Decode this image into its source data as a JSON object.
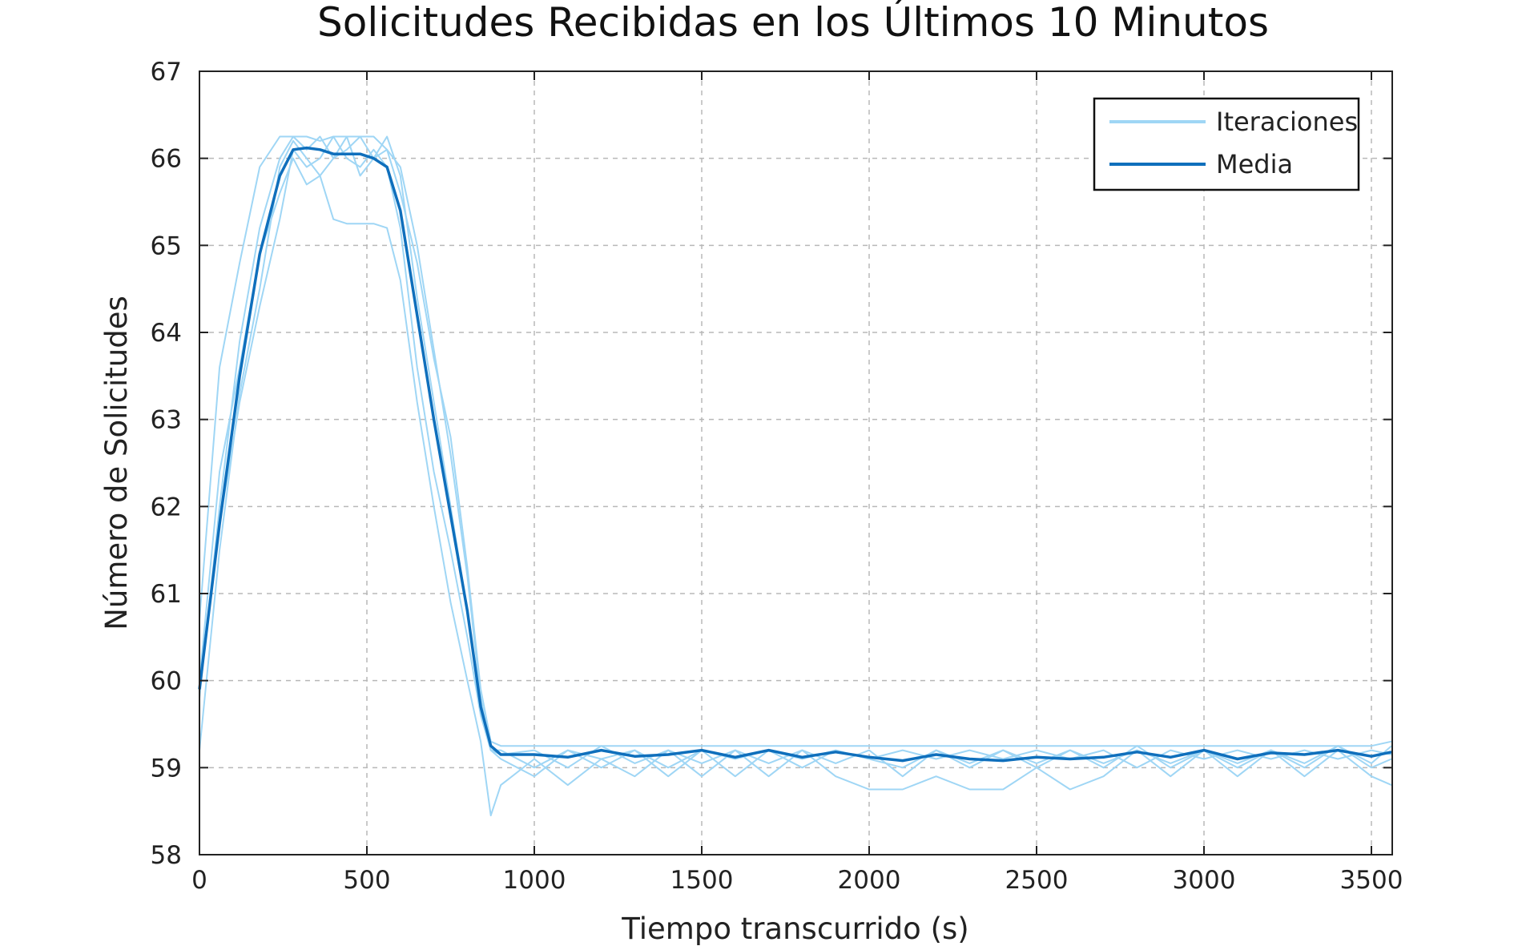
{
  "chart_data": {
    "type": "line",
    "title": "Solicitudes Recibidas en los Últimos 10 Minutos",
    "xlabel": "Tiempo transcurrido (s)",
    "ylabel": "Número de Solicitudes",
    "xlim": [
      0,
      3600
    ],
    "ylim": [
      58,
      67
    ],
    "xticks": [
      0,
      500,
      1000,
      1500,
      2000,
      2500,
      3000,
      3500
    ],
    "yticks": [
      58,
      59,
      60,
      61,
      62,
      63,
      64,
      65,
      66,
      67
    ],
    "grid": true,
    "legend": {
      "position": "top-right",
      "entries": [
        "Iteraciones",
        "Media"
      ]
    },
    "colors": {
      "iterations": "#9fd6f5",
      "mean": "#0f6fbc",
      "grid": "#b8b8b8",
      "axis": "#222222"
    },
    "series": [
      {
        "name": "Iteraciones",
        "x": [
          0,
          60,
          120,
          180,
          240,
          280,
          320,
          360,
          400,
          440,
          480,
          520,
          560,
          600,
          650,
          700,
          750,
          800,
          840,
          870,
          900,
          1000,
          1100,
          1200,
          1300,
          1400,
          1500,
          1600,
          1700,
          1800,
          1900,
          2000,
          2100,
          2200,
          2300,
          2400,
          2500,
          2600,
          2700,
          2800,
          2900,
          3000,
          3100,
          3200,
          3300,
          3400,
          3500,
          3560
        ],
        "values": [
          60.7,
          63.6,
          64.8,
          65.9,
          66.25,
          66.25,
          66.25,
          66.2,
          66.25,
          66.25,
          66.25,
          66.25,
          66.1,
          65.6,
          64.8,
          63.7,
          62.8,
          61.3,
          59.9,
          59.3,
          59.25,
          59.25,
          59.25,
          59.25,
          59.25,
          59.25,
          59.25,
          59.25,
          59.25,
          59.25,
          59.25,
          59.25,
          59.25,
          59.25,
          59.25,
          59.25,
          59.25,
          59.25,
          59.25,
          59.25,
          59.25,
          59.25,
          59.25,
          59.25,
          59.25,
          59.25,
          59.25,
          59.3
        ]
      },
      {
        "name": "",
        "x": [
          0,
          60,
          120,
          180,
          240,
          280,
          320,
          360,
          400,
          440,
          480,
          520,
          560,
          600,
          650,
          700,
          750,
          800,
          840,
          870,
          900,
          1000,
          1100,
          1200,
          1300,
          1400,
          1500,
          1600,
          1700,
          1800,
          1900,
          2000,
          2100,
          2200,
          2300,
          2400,
          2500,
          2600,
          2700,
          2800,
          2900,
          3000,
          3100,
          3200,
          3300,
          3400,
          3500,
          3560
        ],
        "values": [
          59.2,
          61.5,
          63.3,
          64.5,
          65.9,
          66.2,
          66.0,
          65.8,
          65.3,
          65.25,
          65.25,
          65.25,
          65.2,
          64.6,
          63.2,
          62.0,
          60.9,
          60.0,
          59.3,
          58.45,
          58.8,
          59.1,
          58.8,
          59.1,
          58.9,
          59.2,
          58.9,
          59.2,
          58.9,
          59.2,
          58.9,
          58.75,
          58.75,
          58.9,
          58.75,
          58.75,
          59.0,
          58.75,
          58.9,
          59.2,
          58.9,
          59.2,
          58.9,
          59.2,
          58.9,
          59.2,
          58.9,
          58.8
        ]
      },
      {
        "name": "",
        "x": [
          0,
          60,
          120,
          180,
          240,
          280,
          320,
          360,
          400,
          440,
          480,
          520,
          560,
          600,
          650,
          700,
          750,
          800,
          840,
          870,
          900,
          1000,
          1100,
          1200,
          1300,
          1400,
          1500,
          1600,
          1700,
          1800,
          1900,
          2000,
          2100,
          2200,
          2300,
          2400,
          2500,
          2600,
          2700,
          2800,
          2900,
          3000,
          3100,
          3200,
          3300,
          3400,
          3500,
          3560
        ],
        "values": [
          59.8,
          62.0,
          63.9,
          65.2,
          66.0,
          66.25,
          66.1,
          66.25,
          66.0,
          66.1,
          66.25,
          66.0,
          66.1,
          65.9,
          65.0,
          63.8,
          62.6,
          61.2,
          59.8,
          59.2,
          59.1,
          58.9,
          59.2,
          59.0,
          59.2,
          58.9,
          59.2,
          58.9,
          59.2,
          59.0,
          59.2,
          59.1,
          59.0,
          59.2,
          59.0,
          59.2,
          59.0,
          59.2,
          59.0,
          59.25,
          59.0,
          59.2,
          59.0,
          59.2,
          59.0,
          59.25,
          59.0,
          59.1
        ]
      },
      {
        "name": "",
        "x": [
          0,
          60,
          120,
          180,
          240,
          280,
          320,
          360,
          400,
          440,
          480,
          520,
          560,
          600,
          650,
          700,
          750,
          800,
          840,
          870,
          900,
          1000,
          1100,
          1200,
          1300,
          1400,
          1500,
          1600,
          1700,
          1800,
          1900,
          2000,
          2100,
          2200,
          2300,
          2400,
          2500,
          2600,
          2700,
          2800,
          2900,
          3000,
          3100,
          3200,
          3300,
          3400,
          3500,
          3560
        ],
        "values": [
          59.9,
          61.8,
          63.2,
          64.3,
          65.3,
          66.1,
          65.9,
          66.0,
          66.25,
          66.0,
          65.9,
          66.1,
          65.9,
          65.2,
          63.6,
          62.4,
          61.5,
          60.5,
          59.6,
          59.2,
          59.15,
          59.2,
          59.0,
          59.25,
          59.05,
          59.2,
          59.05,
          59.2,
          59.05,
          59.2,
          59.05,
          59.2,
          58.9,
          59.2,
          59.05,
          59.2,
          59.05,
          59.2,
          59.05,
          59.2,
          59.05,
          59.2,
          59.05,
          59.2,
          59.05,
          59.25,
          59.05,
          59.25
        ]
      },
      {
        "name": "",
        "x": [
          0,
          60,
          120,
          180,
          240,
          280,
          320,
          360,
          400,
          440,
          480,
          520,
          560,
          600,
          650,
          700,
          750,
          800,
          840,
          870,
          900,
          1000,
          1100,
          1200,
          1300,
          1400,
          1500,
          1600,
          1700,
          1800,
          1900,
          2000,
          2100,
          2200,
          2300,
          2400,
          2500,
          2600,
          2700,
          2800,
          2900,
          3000,
          3100,
          3200,
          3300,
          3400,
          3500,
          3560
        ],
        "values": [
          60.0,
          62.4,
          63.6,
          64.9,
          65.6,
          66.0,
          65.7,
          65.8,
          66.0,
          66.25,
          65.8,
          66.0,
          66.25,
          65.8,
          64.4,
          63.2,
          62.0,
          60.8,
          59.7,
          59.2,
          59.2,
          59.0,
          59.2,
          59.1,
          59.2,
          59.0,
          59.2,
          59.1,
          59.2,
          59.1,
          59.2,
          59.1,
          59.2,
          59.1,
          59.2,
          59.1,
          59.2,
          59.1,
          59.2,
          59.0,
          59.2,
          59.1,
          59.2,
          59.1,
          59.2,
          59.1,
          59.2,
          59.15
        ]
      },
      {
        "name": "Media",
        "x": [
          0,
          60,
          120,
          180,
          240,
          280,
          320,
          360,
          400,
          440,
          480,
          520,
          560,
          600,
          650,
          700,
          750,
          800,
          840,
          870,
          900,
          1000,
          1100,
          1200,
          1300,
          1400,
          1500,
          1600,
          1700,
          1800,
          1900,
          2000,
          2100,
          2200,
          2300,
          2400,
          2500,
          2600,
          2700,
          2800,
          2900,
          3000,
          3100,
          3200,
          3300,
          3400,
          3500,
          3560
        ],
        "values": [
          59.9,
          61.8,
          63.5,
          64.9,
          65.8,
          66.1,
          66.12,
          66.1,
          66.05,
          66.05,
          66.05,
          66.0,
          65.9,
          65.4,
          64.2,
          63.0,
          61.9,
          60.8,
          59.7,
          59.25,
          59.15,
          59.15,
          59.12,
          59.2,
          59.13,
          59.15,
          59.2,
          59.12,
          59.2,
          59.12,
          59.18,
          59.12,
          59.08,
          59.15,
          59.1,
          59.08,
          59.12,
          59.1,
          59.12,
          59.18,
          59.12,
          59.2,
          59.1,
          59.17,
          59.15,
          59.2,
          59.13,
          59.18
        ]
      }
    ]
  }
}
